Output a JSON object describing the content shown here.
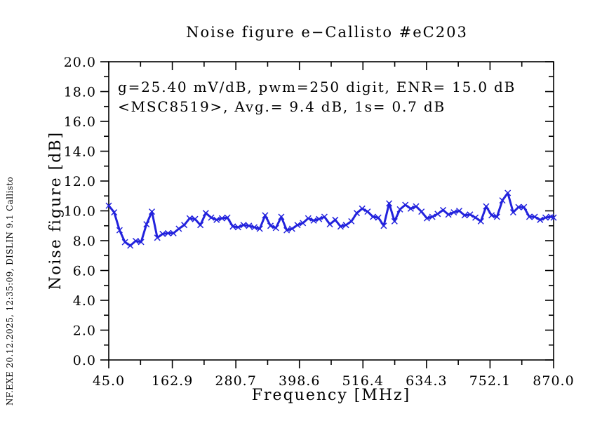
{
  "watermark": "NF.EXE 20.12.2025, 12:35:09, DISLIN 9.1 Callisto",
  "chart_data": {
    "type": "line",
    "title": "Noise figure e−Callisto #eC203",
    "xlabel": "Frequency [MHz]",
    "ylabel": "Noise figure [dB]",
    "annotations": [
      "g=25.40 mV/dB, pwm=250 digit, ENR= 15.0 dB",
      "<MSC8519>, Avg.= 9.4 dB, 1s= 0.7 dB"
    ],
    "grid": false,
    "legend": "none",
    "xlim": [
      45,
      870
    ],
    "ylim": [
      0,
      20
    ],
    "x_tick_values": [
      45,
      162.9,
      280.7,
      398.6,
      516.4,
      634.3,
      752.1,
      870
    ],
    "x_tick_labels": [
      "45.0",
      "162.9",
      "280.7",
      "398.6",
      "516.4",
      "634.3",
      "752.1",
      "870.0"
    ],
    "x_minor_tick_values": [
      103.95,
      221.8,
      339.65,
      457.5,
      575.35,
      693.2,
      811.05
    ],
    "y_tick_values": [
      0,
      2,
      4,
      6,
      8,
      10,
      12,
      14,
      16,
      18,
      20
    ],
    "y_tick_labels": [
      "0.0",
      "2.0",
      "4.0",
      "6.0",
      "8.0",
      "10.0",
      "12.0",
      "14.0",
      "16.0",
      "18.0",
      "20.0"
    ],
    "y_minor_tick_values": [
      1,
      3,
      5,
      7,
      9,
      11,
      13,
      15,
      17,
      19
    ],
    "series": [
      {
        "name": "noise-figure",
        "color": "#2222DD",
        "marker": "x",
        "x": [
          45,
          55,
          65,
          75,
          85,
          95,
          105,
          115,
          125,
          135,
          145,
          155,
          165,
          175,
          185,
          195,
          205,
          215,
          225,
          235,
          245,
          255,
          265,
          275,
          285,
          295,
          305,
          315,
          325,
          335,
          345,
          355,
          365,
          375,
          385,
          395,
          405,
          415,
          425,
          435,
          445,
          455,
          465,
          475,
          485,
          495,
          505,
          515,
          525,
          535,
          545,
          555,
          565,
          575,
          585,
          595,
          605,
          615,
          625,
          635,
          645,
          655,
          665,
          675,
          685,
          695,
          705,
          715,
          725,
          735,
          745,
          755,
          765,
          775,
          785,
          795,
          805,
          815,
          825,
          835,
          845,
          855,
          865,
          870
        ],
        "y": [
          10.35,
          9.9,
          8.7,
          7.9,
          7.67,
          7.98,
          7.91,
          9.1,
          9.95,
          8.2,
          8.45,
          8.5,
          8.5,
          8.8,
          9.05,
          9.5,
          9.45,
          9.05,
          9.85,
          9.55,
          9.4,
          9.5,
          9.55,
          8.95,
          8.9,
          9.05,
          9.0,
          8.9,
          8.8,
          9.7,
          9.0,
          8.85,
          9.6,
          8.7,
          8.8,
          9.05,
          9.18,
          9.5,
          9.35,
          9.45,
          9.6,
          9.1,
          9.4,
          8.95,
          9.05,
          9.3,
          9.85,
          10.15,
          9.95,
          9.6,
          9.55,
          9.0,
          10.5,
          9.3,
          10.1,
          10.4,
          10.15,
          10.3,
          9.95,
          9.5,
          9.6,
          9.8,
          10.05,
          9.75,
          9.9,
          10.0,
          9.7,
          9.75,
          9.55,
          9.3,
          10.3,
          9.7,
          9.6,
          10.7,
          11.2,
          9.9,
          10.25,
          10.25,
          9.6,
          9.6,
          9.4,
          9.55,
          9.6,
          9.55
        ]
      }
    ]
  }
}
